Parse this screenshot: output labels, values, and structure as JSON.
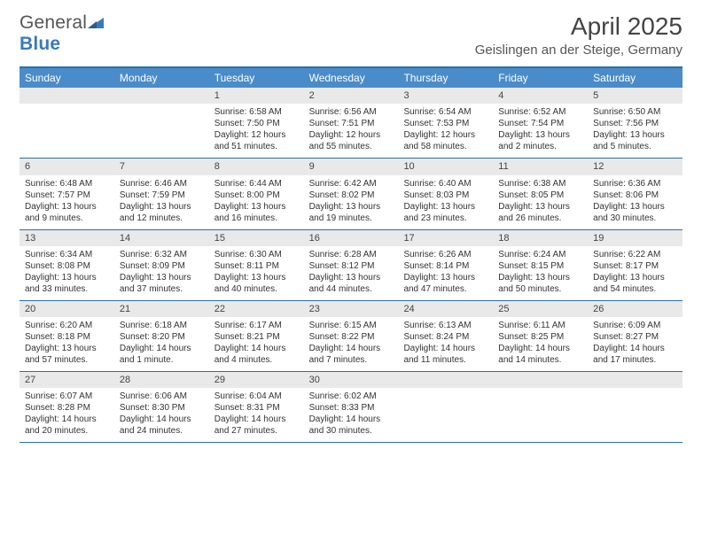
{
  "logo": {
    "text1": "General",
    "text2": "Blue"
  },
  "header": {
    "title": "April 2025",
    "location": "Geislingen an der Steige, Germany"
  },
  "colors": {
    "header_bg": "#4a8cca",
    "header_border": "#2e6da4",
    "daynum_bg": "#e9e9e9",
    "text": "#333333",
    "logo_blue": "#3a7ab8"
  },
  "dayNames": [
    "Sunday",
    "Monday",
    "Tuesday",
    "Wednesday",
    "Thursday",
    "Friday",
    "Saturday"
  ],
  "weeks": [
    [
      {
        "n": "",
        "sr": "",
        "ss": "",
        "dl": ""
      },
      {
        "n": "",
        "sr": "",
        "ss": "",
        "dl": ""
      },
      {
        "n": "1",
        "sr": "Sunrise: 6:58 AM",
        "ss": "Sunset: 7:50 PM",
        "dl": "Daylight: 12 hours and 51 minutes."
      },
      {
        "n": "2",
        "sr": "Sunrise: 6:56 AM",
        "ss": "Sunset: 7:51 PM",
        "dl": "Daylight: 12 hours and 55 minutes."
      },
      {
        "n": "3",
        "sr": "Sunrise: 6:54 AM",
        "ss": "Sunset: 7:53 PM",
        "dl": "Daylight: 12 hours and 58 minutes."
      },
      {
        "n": "4",
        "sr": "Sunrise: 6:52 AM",
        "ss": "Sunset: 7:54 PM",
        "dl": "Daylight: 13 hours and 2 minutes."
      },
      {
        "n": "5",
        "sr": "Sunrise: 6:50 AM",
        "ss": "Sunset: 7:56 PM",
        "dl": "Daylight: 13 hours and 5 minutes."
      }
    ],
    [
      {
        "n": "6",
        "sr": "Sunrise: 6:48 AM",
        "ss": "Sunset: 7:57 PM",
        "dl": "Daylight: 13 hours and 9 minutes."
      },
      {
        "n": "7",
        "sr": "Sunrise: 6:46 AM",
        "ss": "Sunset: 7:59 PM",
        "dl": "Daylight: 13 hours and 12 minutes."
      },
      {
        "n": "8",
        "sr": "Sunrise: 6:44 AM",
        "ss": "Sunset: 8:00 PM",
        "dl": "Daylight: 13 hours and 16 minutes."
      },
      {
        "n": "9",
        "sr": "Sunrise: 6:42 AM",
        "ss": "Sunset: 8:02 PM",
        "dl": "Daylight: 13 hours and 19 minutes."
      },
      {
        "n": "10",
        "sr": "Sunrise: 6:40 AM",
        "ss": "Sunset: 8:03 PM",
        "dl": "Daylight: 13 hours and 23 minutes."
      },
      {
        "n": "11",
        "sr": "Sunrise: 6:38 AM",
        "ss": "Sunset: 8:05 PM",
        "dl": "Daylight: 13 hours and 26 minutes."
      },
      {
        "n": "12",
        "sr": "Sunrise: 6:36 AM",
        "ss": "Sunset: 8:06 PM",
        "dl": "Daylight: 13 hours and 30 minutes."
      }
    ],
    [
      {
        "n": "13",
        "sr": "Sunrise: 6:34 AM",
        "ss": "Sunset: 8:08 PM",
        "dl": "Daylight: 13 hours and 33 minutes."
      },
      {
        "n": "14",
        "sr": "Sunrise: 6:32 AM",
        "ss": "Sunset: 8:09 PM",
        "dl": "Daylight: 13 hours and 37 minutes."
      },
      {
        "n": "15",
        "sr": "Sunrise: 6:30 AM",
        "ss": "Sunset: 8:11 PM",
        "dl": "Daylight: 13 hours and 40 minutes."
      },
      {
        "n": "16",
        "sr": "Sunrise: 6:28 AM",
        "ss": "Sunset: 8:12 PM",
        "dl": "Daylight: 13 hours and 44 minutes."
      },
      {
        "n": "17",
        "sr": "Sunrise: 6:26 AM",
        "ss": "Sunset: 8:14 PM",
        "dl": "Daylight: 13 hours and 47 minutes."
      },
      {
        "n": "18",
        "sr": "Sunrise: 6:24 AM",
        "ss": "Sunset: 8:15 PM",
        "dl": "Daylight: 13 hours and 50 minutes."
      },
      {
        "n": "19",
        "sr": "Sunrise: 6:22 AM",
        "ss": "Sunset: 8:17 PM",
        "dl": "Daylight: 13 hours and 54 minutes."
      }
    ],
    [
      {
        "n": "20",
        "sr": "Sunrise: 6:20 AM",
        "ss": "Sunset: 8:18 PM",
        "dl": "Daylight: 13 hours and 57 minutes."
      },
      {
        "n": "21",
        "sr": "Sunrise: 6:18 AM",
        "ss": "Sunset: 8:20 PM",
        "dl": "Daylight: 14 hours and 1 minute."
      },
      {
        "n": "22",
        "sr": "Sunrise: 6:17 AM",
        "ss": "Sunset: 8:21 PM",
        "dl": "Daylight: 14 hours and 4 minutes."
      },
      {
        "n": "23",
        "sr": "Sunrise: 6:15 AM",
        "ss": "Sunset: 8:22 PM",
        "dl": "Daylight: 14 hours and 7 minutes."
      },
      {
        "n": "24",
        "sr": "Sunrise: 6:13 AM",
        "ss": "Sunset: 8:24 PM",
        "dl": "Daylight: 14 hours and 11 minutes."
      },
      {
        "n": "25",
        "sr": "Sunrise: 6:11 AM",
        "ss": "Sunset: 8:25 PM",
        "dl": "Daylight: 14 hours and 14 minutes."
      },
      {
        "n": "26",
        "sr": "Sunrise: 6:09 AM",
        "ss": "Sunset: 8:27 PM",
        "dl": "Daylight: 14 hours and 17 minutes."
      }
    ],
    [
      {
        "n": "27",
        "sr": "Sunrise: 6:07 AM",
        "ss": "Sunset: 8:28 PM",
        "dl": "Daylight: 14 hours and 20 minutes."
      },
      {
        "n": "28",
        "sr": "Sunrise: 6:06 AM",
        "ss": "Sunset: 8:30 PM",
        "dl": "Daylight: 14 hours and 24 minutes."
      },
      {
        "n": "29",
        "sr": "Sunrise: 6:04 AM",
        "ss": "Sunset: 8:31 PM",
        "dl": "Daylight: 14 hours and 27 minutes."
      },
      {
        "n": "30",
        "sr": "Sunrise: 6:02 AM",
        "ss": "Sunset: 8:33 PM",
        "dl": "Daylight: 14 hours and 30 minutes."
      },
      {
        "n": "",
        "sr": "",
        "ss": "",
        "dl": ""
      },
      {
        "n": "",
        "sr": "",
        "ss": "",
        "dl": ""
      },
      {
        "n": "",
        "sr": "",
        "ss": "",
        "dl": ""
      }
    ]
  ]
}
